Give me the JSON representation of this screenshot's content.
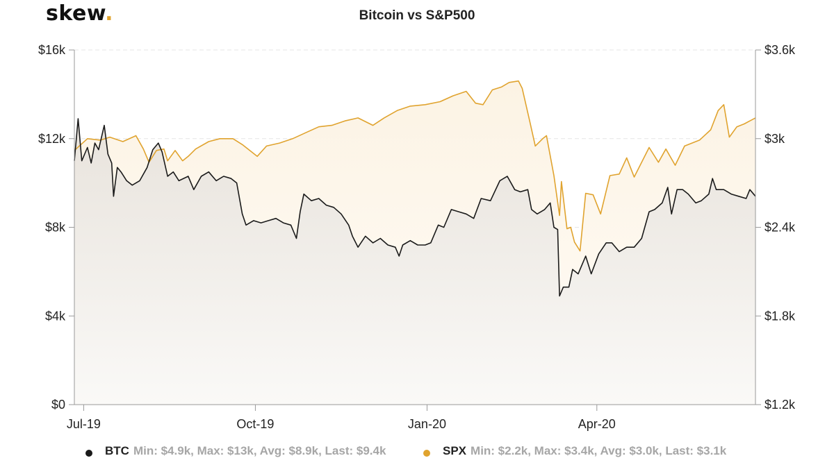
{
  "header": {
    "logo_text": "skew",
    "logo_dot": ".",
    "title": "Bitcoin vs S&P500"
  },
  "colors": {
    "btc": "#1a1a1a",
    "spx": "#e0a32e",
    "btc_fill": "#ebe6df",
    "spx_fill": "#fdf6e9",
    "grid": "#e6e6e6"
  },
  "legend": [
    {
      "name": "BTC",
      "stats": "Min: $4.9k, Max: $13k, Avg: $8.9k, Last: $9.4k",
      "color": "#1a1a1a"
    },
    {
      "name": "SPX",
      "stats": "Min: $2.2k, Max: $3.4k, Avg: $3.0k, Last: $3.1k",
      "color": "#e0a32e"
    }
  ],
  "chart_data": {
    "type": "area",
    "title": "Bitcoin vs S&P500",
    "x_ticks": [
      "Jul-19",
      "Oct-19",
      "Jan-20",
      "Apr-20"
    ],
    "x_tick_dates": [
      "2019-07-01",
      "2019-10-01",
      "2020-01-01",
      "2020-04-01"
    ],
    "x_range": [
      "2019-06-26",
      "2020-06-25"
    ],
    "y_left_ticks": [
      "$0",
      "$4k",
      "$8k",
      "$12k",
      "$16k"
    ],
    "y_left_range": [
      0,
      16000
    ],
    "y_right_ticks": [
      "$1.2k",
      "$1.8k",
      "$2.4k",
      "$3k",
      "$3.6k"
    ],
    "y_right_range": [
      1200,
      3600
    ],
    "grid": true,
    "legend_position": "bottom",
    "series": [
      {
        "name": "BTC",
        "axis": "left",
        "points": [
          [
            "2019-06-26",
            11000
          ],
          [
            "2019-06-28",
            12900
          ],
          [
            "2019-06-30",
            11000
          ],
          [
            "2019-07-03",
            11600
          ],
          [
            "2019-07-05",
            10900
          ],
          [
            "2019-07-07",
            11800
          ],
          [
            "2019-07-09",
            11500
          ],
          [
            "2019-07-12",
            12600
          ],
          [
            "2019-07-14",
            11300
          ],
          [
            "2019-07-16",
            10900
          ],
          [
            "2019-07-17",
            9400
          ],
          [
            "2019-07-19",
            10700
          ],
          [
            "2019-07-21",
            10500
          ],
          [
            "2019-07-24",
            10100
          ],
          [
            "2019-07-27",
            9900
          ],
          [
            "2019-07-31",
            10100
          ],
          [
            "2019-08-04",
            10700
          ],
          [
            "2019-08-07",
            11500
          ],
          [
            "2019-08-10",
            11800
          ],
          [
            "2019-08-12",
            11400
          ],
          [
            "2019-08-15",
            10300
          ],
          [
            "2019-08-18",
            10500
          ],
          [
            "2019-08-21",
            10100
          ],
          [
            "2019-08-26",
            10300
          ],
          [
            "2019-08-29",
            9700
          ],
          [
            "2019-09-02",
            10300
          ],
          [
            "2019-09-06",
            10500
          ],
          [
            "2019-09-10",
            10100
          ],
          [
            "2019-09-14",
            10300
          ],
          [
            "2019-09-18",
            10200
          ],
          [
            "2019-09-21",
            10000
          ],
          [
            "2019-09-24",
            8600
          ],
          [
            "2019-09-26",
            8100
          ],
          [
            "2019-09-30",
            8300
          ],
          [
            "2019-10-04",
            8200
          ],
          [
            "2019-10-08",
            8300
          ],
          [
            "2019-10-12",
            8400
          ],
          [
            "2019-10-16",
            8200
          ],
          [
            "2019-10-20",
            8100
          ],
          [
            "2019-10-23",
            7500
          ],
          [
            "2019-10-25",
            8700
          ],
          [
            "2019-10-27",
            9500
          ],
          [
            "2019-10-31",
            9200
          ],
          [
            "2019-11-04",
            9300
          ],
          [
            "2019-11-08",
            9000
          ],
          [
            "2019-11-12",
            8900
          ],
          [
            "2019-11-16",
            8600
          ],
          [
            "2019-11-20",
            8100
          ],
          [
            "2019-11-22",
            7600
          ],
          [
            "2019-11-25",
            7100
          ],
          [
            "2019-11-29",
            7600
          ],
          [
            "2019-12-03",
            7300
          ],
          [
            "2019-12-07",
            7500
          ],
          [
            "2019-12-11",
            7200
          ],
          [
            "2019-12-15",
            7100
          ],
          [
            "2019-12-17",
            6700
          ],
          [
            "2019-12-19",
            7200
          ],
          [
            "2019-12-23",
            7400
          ],
          [
            "2019-12-27",
            7200
          ],
          [
            "2019-12-31",
            7200
          ],
          [
            "2020-01-03",
            7300
          ],
          [
            "2020-01-07",
            8100
          ],
          [
            "2020-01-10",
            8000
          ],
          [
            "2020-01-14",
            8800
          ],
          [
            "2020-01-18",
            8700
          ],
          [
            "2020-01-22",
            8600
          ],
          [
            "2020-01-26",
            8400
          ],
          [
            "2020-01-30",
            9300
          ],
          [
            "2020-02-04",
            9200
          ],
          [
            "2020-02-09",
            10100
          ],
          [
            "2020-02-13",
            10300
          ],
          [
            "2020-02-17",
            9700
          ],
          [
            "2020-02-20",
            9600
          ],
          [
            "2020-02-24",
            9700
          ],
          [
            "2020-02-26",
            8800
          ],
          [
            "2020-02-29",
            8600
          ],
          [
            "2020-03-04",
            8800
          ],
          [
            "2020-03-07",
            9100
          ],
          [
            "2020-03-09",
            8000
          ],
          [
            "2020-03-11",
            7900
          ],
          [
            "2020-03-12",
            4900
          ],
          [
            "2020-03-14",
            5300
          ],
          [
            "2020-03-17",
            5300
          ],
          [
            "2020-03-19",
            6100
          ],
          [
            "2020-03-22",
            5900
          ],
          [
            "2020-03-26",
            6700
          ],
          [
            "2020-03-29",
            5900
          ],
          [
            "2020-04-02",
            6800
          ],
          [
            "2020-04-06",
            7300
          ],
          [
            "2020-04-09",
            7300
          ],
          [
            "2020-04-13",
            6900
          ],
          [
            "2020-04-17",
            7100
          ],
          [
            "2020-04-21",
            7100
          ],
          [
            "2020-04-25",
            7500
          ],
          [
            "2020-04-29",
            8700
          ],
          [
            "2020-05-02",
            8800
          ],
          [
            "2020-05-06",
            9100
          ],
          [
            "2020-05-09",
            9800
          ],
          [
            "2020-05-11",
            8600
          ],
          [
            "2020-05-14",
            9700
          ],
          [
            "2020-05-17",
            9700
          ],
          [
            "2020-05-20",
            9500
          ],
          [
            "2020-05-24",
            9100
          ],
          [
            "2020-05-27",
            9200
          ],
          [
            "2020-05-31",
            9500
          ],
          [
            "2020-06-02",
            10200
          ],
          [
            "2020-06-04",
            9700
          ],
          [
            "2020-06-08",
            9700
          ],
          [
            "2020-06-12",
            9500
          ],
          [
            "2020-06-16",
            9400
          ],
          [
            "2020-06-20",
            9300
          ],
          [
            "2020-06-22",
            9700
          ],
          [
            "2020-06-25",
            9400
          ]
        ]
      },
      {
        "name": "SPX",
        "axis": "right",
        "points": [
          [
            "2019-06-26",
            2920
          ],
          [
            "2019-07-03",
            3000
          ],
          [
            "2019-07-10",
            2990
          ],
          [
            "2019-07-15",
            3010
          ],
          [
            "2019-07-22",
            2980
          ],
          [
            "2019-07-29",
            3020
          ],
          [
            "2019-08-02",
            2930
          ],
          [
            "2019-08-05",
            2840
          ],
          [
            "2019-08-09",
            2920
          ],
          [
            "2019-08-13",
            2930
          ],
          [
            "2019-08-15",
            2850
          ],
          [
            "2019-08-19",
            2920
          ],
          [
            "2019-08-23",
            2850
          ],
          [
            "2019-08-26",
            2880
          ],
          [
            "2019-08-30",
            2930
          ],
          [
            "2019-09-06",
            2980
          ],
          [
            "2019-09-12",
            3000
          ],
          [
            "2019-09-19",
            3000
          ],
          [
            "2019-09-24",
            2960
          ],
          [
            "2019-10-02",
            2880
          ],
          [
            "2019-10-07",
            2950
          ],
          [
            "2019-10-14",
            2970
          ],
          [
            "2019-10-21",
            3000
          ],
          [
            "2019-10-28",
            3040
          ],
          [
            "2019-11-04",
            3080
          ],
          [
            "2019-11-11",
            3090
          ],
          [
            "2019-11-18",
            3120
          ],
          [
            "2019-11-25",
            3140
          ],
          [
            "2019-12-03",
            3090
          ],
          [
            "2019-12-09",
            3140
          ],
          [
            "2019-12-16",
            3190
          ],
          [
            "2019-12-23",
            3220
          ],
          [
            "2019-12-31",
            3230
          ],
          [
            "2020-01-08",
            3250
          ],
          [
            "2020-01-15",
            3290
          ],
          [
            "2020-01-22",
            3320
          ],
          [
            "2020-01-27",
            3240
          ],
          [
            "2020-01-31",
            3230
          ],
          [
            "2020-02-05",
            3330
          ],
          [
            "2020-02-10",
            3350
          ],
          [
            "2020-02-14",
            3380
          ],
          [
            "2020-02-19",
            3390
          ],
          [
            "2020-02-21",
            3340
          ],
          [
            "2020-02-25",
            3120
          ],
          [
            "2020-02-28",
            2950
          ],
          [
            "2020-03-03",
            3000
          ],
          [
            "2020-03-05",
            3020
          ],
          [
            "2020-03-09",
            2750
          ],
          [
            "2020-03-12",
            2480
          ],
          [
            "2020-03-13",
            2710
          ],
          [
            "2020-03-16",
            2390
          ],
          [
            "2020-03-18",
            2400
          ],
          [
            "2020-03-20",
            2300
          ],
          [
            "2020-03-23",
            2240
          ],
          [
            "2020-03-26",
            2630
          ],
          [
            "2020-03-30",
            2620
          ],
          [
            "2020-04-03",
            2490
          ],
          [
            "2020-04-08",
            2750
          ],
          [
            "2020-04-13",
            2760
          ],
          [
            "2020-04-17",
            2870
          ],
          [
            "2020-04-21",
            2740
          ],
          [
            "2020-04-29",
            2940
          ],
          [
            "2020-05-04",
            2840
          ],
          [
            "2020-05-08",
            2930
          ],
          [
            "2020-05-13",
            2820
          ],
          [
            "2020-05-18",
            2950
          ],
          [
            "2020-05-26",
            2990
          ],
          [
            "2020-06-01",
            3060
          ],
          [
            "2020-06-05",
            3190
          ],
          [
            "2020-06-08",
            3230
          ],
          [
            "2020-06-11",
            3010
          ],
          [
            "2020-06-15",
            3080
          ],
          [
            "2020-06-19",
            3100
          ],
          [
            "2020-06-22",
            3120
          ],
          [
            "2020-06-25",
            3140
          ]
        ]
      }
    ]
  }
}
